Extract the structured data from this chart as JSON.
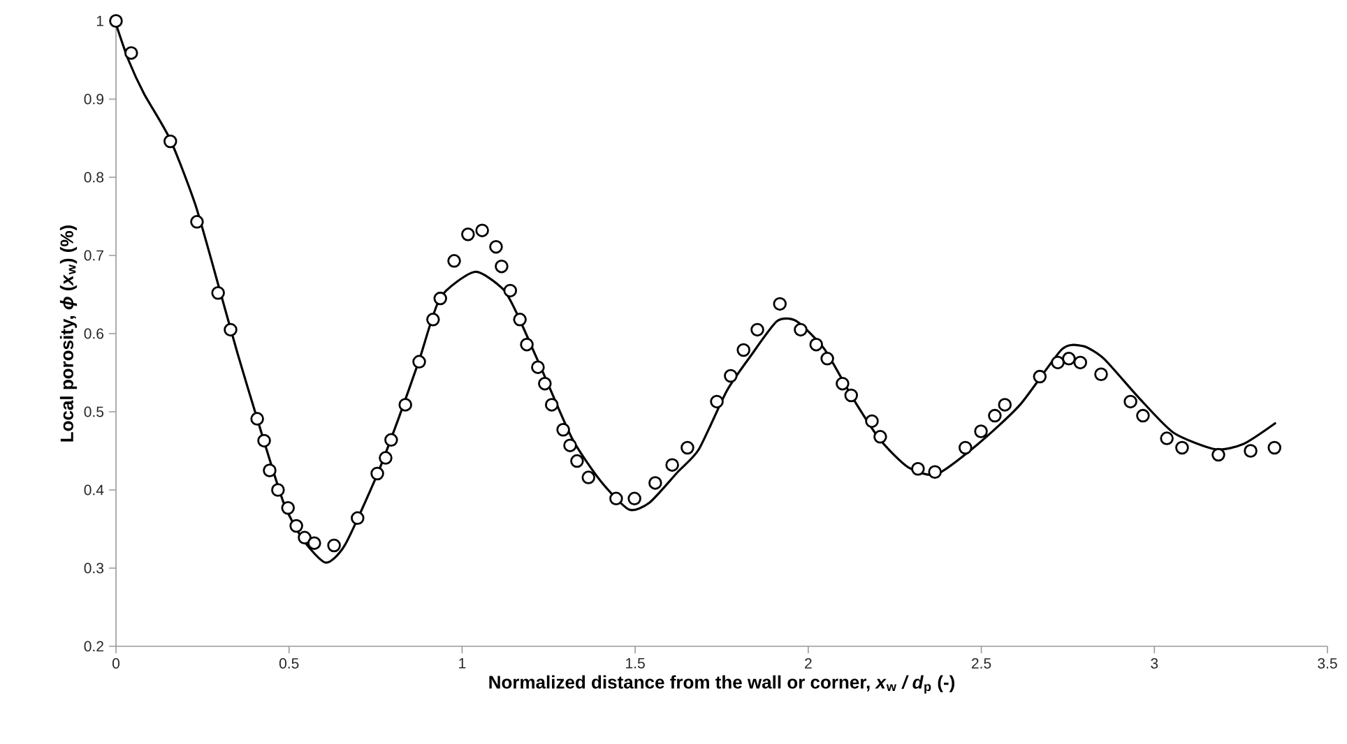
{
  "chart_data": {
    "type": "scatter",
    "xlabel": "Normalized distance from the wall or corner, *x*$_{w}$ */ d*$_{p}$ (-)",
    "ylabel": "Local porosity, *ϕ* (*x*$_{w}$) (%)",
    "xlim": [
      0,
      3.5
    ],
    "ylim": [
      0.2,
      1
    ],
    "xticks": [
      0,
      0.5,
      1,
      1.5,
      2,
      2.5,
      3,
      3.5
    ],
    "yticks": [
      0.2,
      0.3,
      0.4,
      0.5,
      0.6,
      0.7,
      0.8,
      0.9,
      1
    ],
    "grid": false,
    "series": [
      {
        "marker": "circle",
        "color": "#000000",
        "x": [
          0,
          0.044,
          0.157,
          0.234,
          0.295,
          0.331,
          0.408,
          0.428,
          0.444,
          0.468,
          0.497,
          0.521,
          0.545,
          0.573,
          0.63,
          0.698,
          0.755,
          0.779,
          0.795,
          0.836,
          0.876,
          0.916,
          0.937,
          0.977,
          1.017,
          1.058,
          1.098,
          1.114,
          1.139,
          1.167,
          1.187,
          1.219,
          1.239,
          1.259,
          1.292,
          1.312,
          1.332,
          1.365,
          1.445,
          1.498,
          1.558,
          1.607,
          1.651,
          1.736,
          1.776,
          1.813,
          1.853,
          1.918,
          1.978,
          2.023,
          2.055,
          2.099,
          2.124,
          2.184,
          2.208,
          2.317,
          2.366,
          2.454,
          2.499,
          2.539,
          2.568,
          2.669,
          2.721,
          2.753,
          2.786,
          2.846,
          2.931,
          2.967,
          3.036,
          3.08,
          3.185,
          3.278,
          3.347
        ],
        "values": [
          1.0,
          0.959,
          0.846,
          0.743,
          0.652,
          0.605,
          0.491,
          0.463,
          0.425,
          0.4,
          0.377,
          0.354,
          0.339,
          0.332,
          0.329,
          0.364,
          0.421,
          0.441,
          0.464,
          0.509,
          0.564,
          0.618,
          0.645,
          0.693,
          0.727,
          0.732,
          0.711,
          0.686,
          0.655,
          0.618,
          0.586,
          0.557,
          0.536,
          0.509,
          0.477,
          0.457,
          0.437,
          0.416,
          0.389,
          0.389,
          0.409,
          0.432,
          0.454,
          0.513,
          0.546,
          0.579,
          0.605,
          0.638,
          0.605,
          0.586,
          0.568,
          0.536,
          0.521,
          0.488,
          0.468,
          0.427,
          0.423,
          0.454,
          0.475,
          0.495,
          0.509,
          0.545,
          0.563,
          0.568,
          0.563,
          0.548,
          0.513,
          0.495,
          0.466,
          0.454,
          0.445,
          0.45,
          0.454
        ]
      },
      {
        "type": "line",
        "marker": "none",
        "line_style": "solid",
        "color": "#000000",
        "x": [
          0,
          0.036,
          0.081,
          0.157,
          0.23,
          0.299,
          0.351,
          0.408,
          0.484,
          0.541,
          0.606,
          0.662,
          0.755,
          0.816,
          0.876,
          0.937,
          1.037,
          1.118,
          1.159,
          1.239,
          1.32,
          1.401,
          1.482,
          1.542,
          1.623,
          1.684,
          1.765,
          1.833,
          1.91,
          1.966,
          2.047,
          2.128,
          2.208,
          2.289,
          2.37,
          2.491,
          2.612,
          2.733,
          2.794,
          2.854,
          2.955,
          3.056,
          3.177,
          3.258,
          3.351
        ],
        "values": [
          0.996,
          0.95,
          0.907,
          0.848,
          0.764,
          0.657,
          0.575,
          0.491,
          0.384,
          0.336,
          0.307,
          0.33,
          0.42,
          0.491,
          0.566,
          0.646,
          0.679,
          0.657,
          0.625,
          0.545,
          0.464,
          0.411,
          0.375,
          0.384,
          0.423,
          0.452,
          0.527,
          0.571,
          0.616,
          0.616,
          0.58,
          0.518,
          0.464,
          0.429,
          0.42,
          0.459,
          0.509,
          0.58,
          0.584,
          0.568,
          0.518,
          0.473,
          0.452,
          0.459,
          0.486
        ]
      }
    ]
  }
}
